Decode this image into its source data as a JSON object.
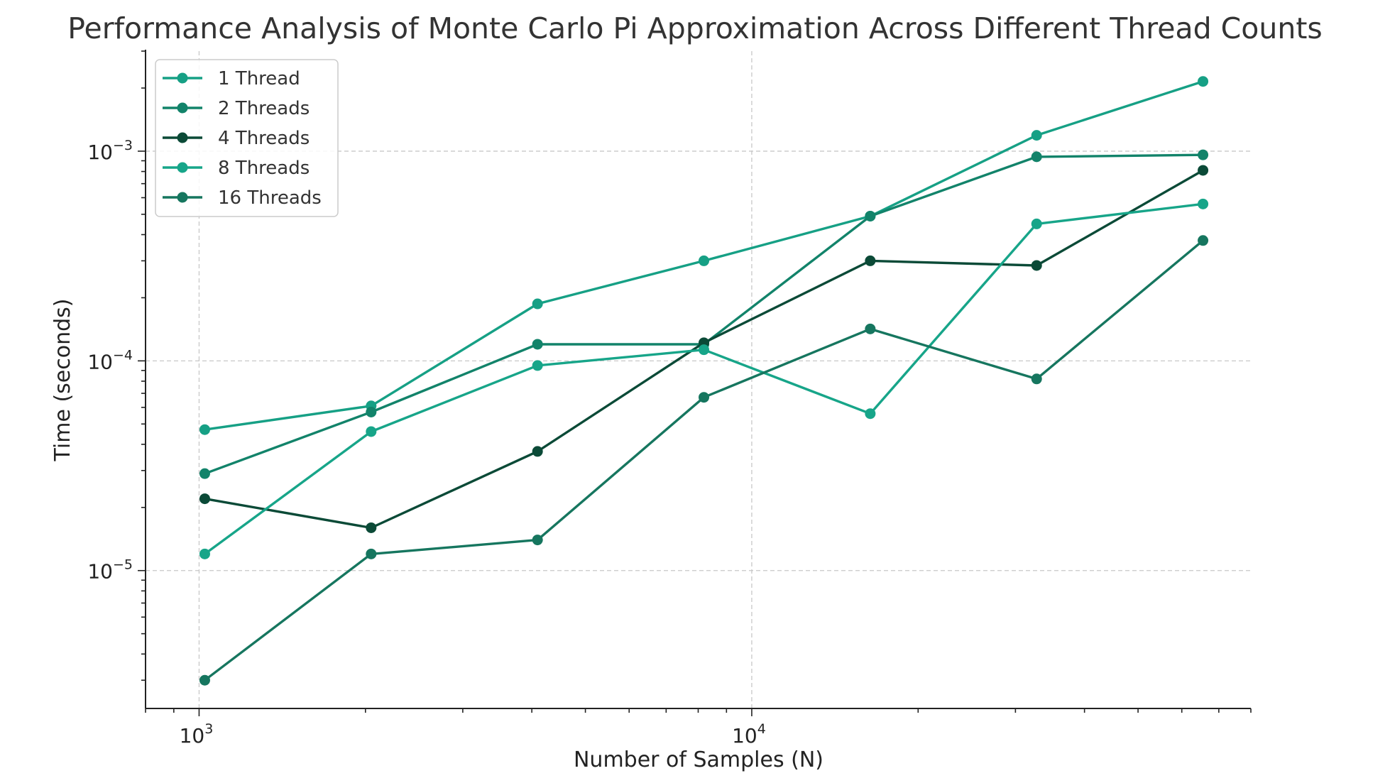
{
  "chart_data": {
    "type": "line",
    "title": "Performance Analysis of Monte Carlo Pi Approximation Across Different Thread Counts",
    "xlabel": "Number of Samples (N)",
    "ylabel": "Time (seconds)",
    "x_scale": "log",
    "y_scale": "log",
    "xlim": [
      800,
      80000
    ],
    "ylim": [
      2.2e-06,
      0.003
    ],
    "grid": true,
    "legend_position": "top-left",
    "x_ticks": [
      {
        "base": "10",
        "exp": "3"
      },
      {
        "base": "10",
        "exp": "4"
      }
    ],
    "y_ticks": [
      {
        "base": "10",
        "exp": "−5"
      },
      {
        "base": "10",
        "exp": "−4"
      },
      {
        "base": "10",
        "exp": "−3"
      }
    ],
    "x": [
      1024,
      2048,
      4096,
      8192,
      16384,
      32768,
      65536
    ],
    "series": [
      {
        "name": "1 Thread",
        "color": "#16a085",
        "values": [
          4.7e-05,
          6.1e-05,
          0.000187,
          0.0003,
          0.00049,
          0.00119,
          0.00215
        ]
      },
      {
        "name": "2 Threads",
        "color": "#12836a",
        "values": [
          2.9e-05,
          5.7e-05,
          0.00012,
          0.00012,
          0.00049,
          0.00094,
          0.00096
        ]
      },
      {
        "name": "4 Threads",
        "color": "#0b4a37",
        "values": [
          2.2e-05,
          1.6e-05,
          3.7e-05,
          0.000122,
          0.0003,
          0.000285,
          0.00081
        ]
      },
      {
        "name": "8 Threads",
        "color": "#17a589",
        "values": [
          1.2e-05,
          4.6e-05,
          9.5e-05,
          0.000113,
          5.6e-05,
          0.00045,
          0.00056
        ]
      },
      {
        "name": "16 Threads",
        "color": "#16765f",
        "values": [
          3e-06,
          1.2e-05,
          1.4e-05,
          6.7e-05,
          0.000142,
          8.2e-05,
          0.000375
        ]
      }
    ]
  }
}
